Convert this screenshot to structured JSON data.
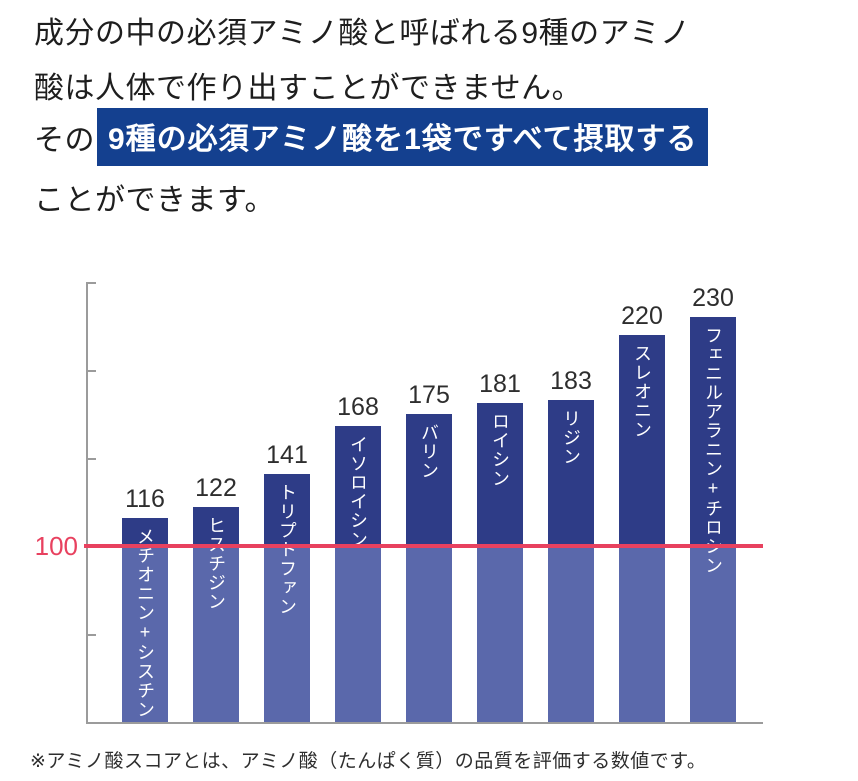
{
  "header": {
    "line1": "成分の中の必須アミノ酸と呼ばれる9種のアミノ",
    "line2": "酸は人体で作り出すことができません。",
    "line3_prefix": "その",
    "line3_highlight": "9種の必須アミノ酸を1袋ですべて摂取する",
    "line4": "ことができます。",
    "highlight_bg": "#14408f"
  },
  "chart_data": {
    "type": "bar",
    "title": "",
    "xlabel": "",
    "ylabel": "",
    "categories": [
      "メチオニン+シスチン",
      "ヒスチジン",
      "トリプトファン",
      "イソロイシン",
      "バリン",
      "ロイシン",
      "リジン",
      "スレオニン",
      "フェニルアラニン+チロシン"
    ],
    "values": [
      116,
      122,
      141,
      168,
      175,
      181,
      183,
      220,
      230
    ],
    "reference_line": {
      "value": 100,
      "label": "100",
      "color": "#e8415f"
    },
    "ylim": [
      0,
      250
    ],
    "tick_step": 50,
    "tick_values": [
      50,
      150,
      200,
      250
    ],
    "grid": false,
    "legend": false,
    "bar_color_above_reference": "#2e3c87",
    "bar_color_below_reference": "#5a68ab",
    "axis_color": "#9b9b9b"
  },
  "footnote": "※アミノ酸スコアとは、アミノ酸（たんぱく質）の品質を評価する数値です。"
}
